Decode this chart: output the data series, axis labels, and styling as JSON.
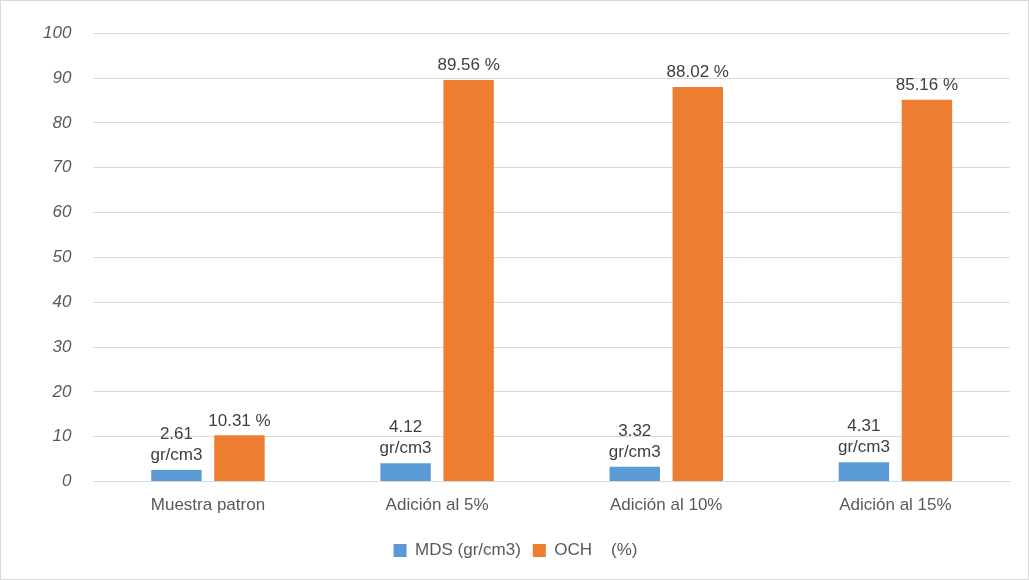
{
  "chart_data": {
    "type": "bar",
    "categories": [
      "Muestra patron",
      "Adición al 5%",
      "Adición al 10%",
      "Adición al 15%"
    ],
    "series": [
      {
        "name": "MDS (gr/cm3)",
        "color": "#5b9bd5",
        "values": [
          2.61,
          4.12,
          3.32,
          4.31
        ],
        "value_labels": [
          "2.61 gr/cm3",
          "4.12 gr/cm3",
          "3.32 gr/cm3",
          "4.31 gr/cm3"
        ]
      },
      {
        "name": "OCH    (%)",
        "color": "#ed7d31",
        "values": [
          10.31,
          89.56,
          88.02,
          85.16
        ],
        "value_labels": [
          "10.31 %",
          "89.56 %",
          "88.02 %",
          "85.16 %"
        ]
      }
    ],
    "ylim": [
      0,
      100
    ],
    "yticks": [
      0,
      10,
      20,
      30,
      40,
      50,
      60,
      70,
      80,
      90,
      100
    ],
    "grid": "y",
    "legend": "bottom"
  }
}
